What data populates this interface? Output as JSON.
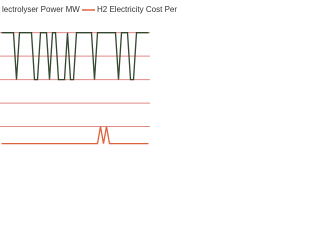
{
  "chart_data": {
    "type": "line",
    "categories": [
      null,
      null,
      null,
      null,
      null,
      null,
      null,
      null,
      null,
      null,
      null,
      null,
      null,
      null,
      null,
      null,
      null,
      null,
      null,
      null,
      null,
      null,
      null,
      null,
      null,
      null,
      null,
      null,
      null,
      null,
      null,
      null,
      null,
      null,
      null,
      null,
      null,
      null,
      null,
      null,
      null,
      null,
      null,
      null,
      null,
      null,
      null,
      null,
      null,
      null
    ],
    "series": [
      {
        "name": "lectrolyser Power MW",
        "color": "#34472f",
        "values": [
          110,
          110,
          110,
          110,
          110,
          66,
          110,
          110,
          110,
          110,
          110,
          66,
          66,
          110,
          110,
          110,
          66,
          110,
          110,
          66,
          66,
          66,
          110,
          66,
          66,
          110,
          110,
          110,
          110,
          110,
          110,
          66,
          110,
          110,
          110,
          110,
          110,
          110,
          110,
          66,
          110,
          110,
          110,
          66,
          66,
          110,
          110,
          110,
          110,
          110
        ]
      },
      {
        "name": "H2 Electricity Cost Per",
        "color": "#e0623a",
        "values": [
          6,
          6,
          6,
          6,
          6,
          6,
          6,
          6,
          6,
          6,
          6,
          6,
          6,
          6,
          6,
          6,
          6,
          6,
          6,
          6,
          6,
          6,
          6,
          6,
          6,
          6,
          6,
          6,
          6,
          6,
          6,
          6,
          6,
          22,
          6,
          22,
          6,
          6,
          6,
          6,
          6,
          6,
          6,
          6,
          6,
          6,
          6,
          6,
          6,
          6
        ]
      }
    ],
    "ylim": [
      0,
      120
    ],
    "yticks": [
      22,
      44,
      66,
      88,
      110
    ],
    "grid": true,
    "grid_color": "#e28a86",
    "legend": "top"
  }
}
